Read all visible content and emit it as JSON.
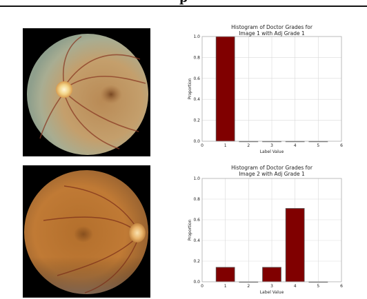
{
  "page": {
    "header_fragment": "p"
  },
  "fundus_images": [
    {
      "label": "Image 1 fundus photograph",
      "tint": "green-gray",
      "optic_disc_side": "left"
    },
    {
      "label": "Image 2 fundus photograph",
      "tint": "orange-brown",
      "optic_disc_side": "right"
    }
  ],
  "colors": {
    "bar_fill": "#800000",
    "bar_stroke": "#5a5a5a",
    "grid": "#d9d9d9"
  },
  "chart_data": [
    {
      "type": "bar",
      "title": "Histogram of Doctor Grades for Image 1 with Adj Grade 1",
      "title_lines": [
        "Histogram of Doctor Grades for",
        "Image 1 with Adj Grade 1"
      ],
      "xlabel": "Label Value",
      "ylabel": "Proportion",
      "xlim": [
        0,
        6
      ],
      "ylim": [
        0,
        1.0
      ],
      "x_ticks": [
        "0",
        "1",
        "2",
        "3",
        "4",
        "5",
        "6"
      ],
      "y_ticks": [
        "0.0",
        "0.2",
        "0.4",
        "0.6",
        "0.8",
        "1.0"
      ],
      "y_tick_values": [
        0,
        0.2,
        0.4,
        0.6,
        0.8,
        1.0
      ],
      "grid": true,
      "categories": [
        1,
        2,
        3,
        4,
        5
      ],
      "values": [
        1.0,
        0.0,
        0.0,
        0.0,
        0.0
      ]
    },
    {
      "type": "bar",
      "title": "Histogram of Doctor Grades for Image 2 with Adj Grade 1",
      "title_lines": [
        "Histogram of Doctor Grades for",
        "Image 2 with Adj Grade 1"
      ],
      "xlabel": "Label Value",
      "ylabel": "Proportion",
      "xlim": [
        0,
        6
      ],
      "ylim": [
        0,
        1.0
      ],
      "x_ticks": [
        "0",
        "1",
        "2",
        "3",
        "4",
        "5",
        "6"
      ],
      "y_ticks": [
        "0.0",
        "0.2",
        "0.4",
        "0.6",
        "0.8",
        "1.0"
      ],
      "y_tick_values": [
        0,
        0.2,
        0.4,
        0.6,
        0.8,
        1.0
      ],
      "grid": true,
      "categories": [
        1,
        2,
        3,
        4,
        5
      ],
      "values": [
        0.14,
        0.0,
        0.14,
        0.71,
        0.0
      ]
    }
  ]
}
